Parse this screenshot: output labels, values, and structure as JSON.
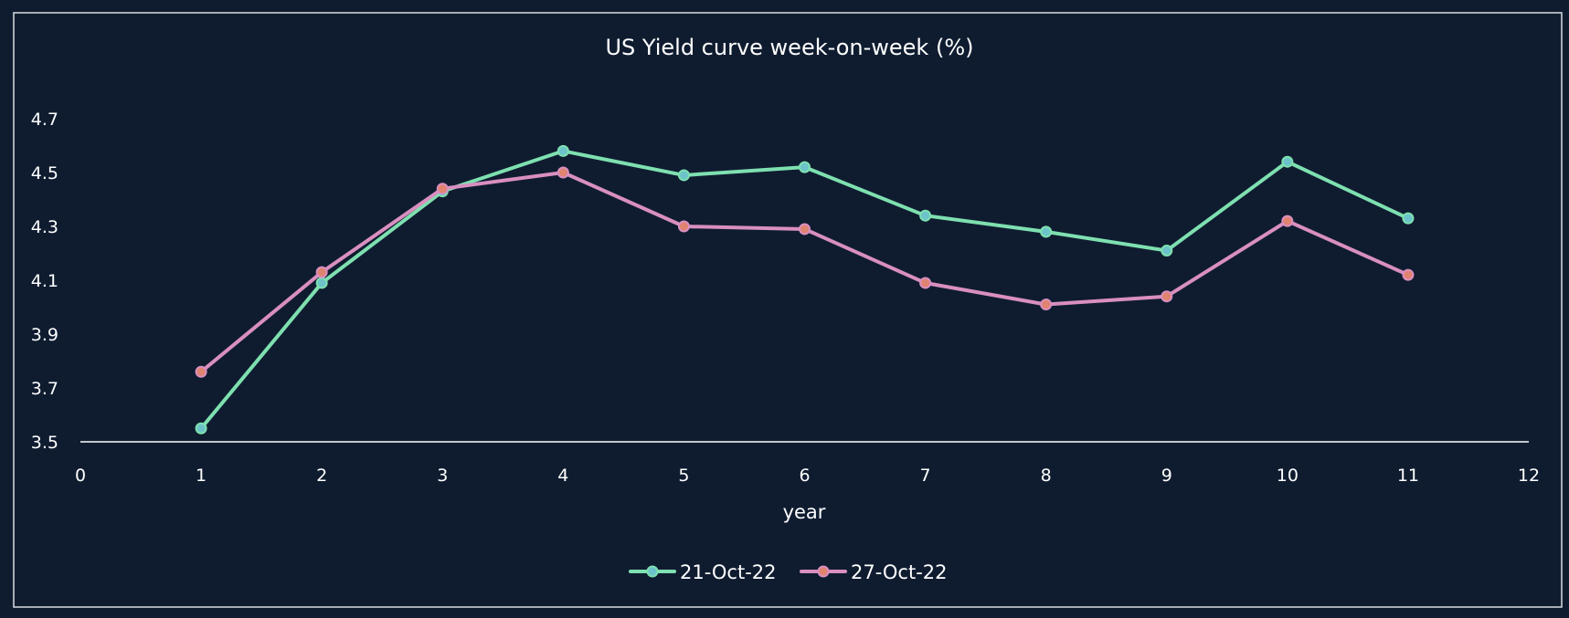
{
  "chart_data": {
    "type": "line",
    "title": "US Yield curve week-on-week (%)",
    "xlabel": "year",
    "ylabel": "",
    "xlim": [
      0,
      12
    ],
    "ylim": [
      3.5,
      4.7
    ],
    "x_ticks": [
      "0",
      "1",
      "2",
      "3",
      "4",
      "5",
      "6",
      "7",
      "8",
      "9",
      "10",
      "11",
      "12"
    ],
    "y_ticks": [
      "3.5",
      "3.7",
      "3.9",
      "4.1",
      "4.3",
      "4.5",
      "4.7"
    ],
    "grid": false,
    "legend_position": "bottom",
    "x": [
      1,
      2,
      3,
      4,
      5,
      6,
      7,
      8,
      9,
      10,
      11
    ],
    "series": [
      {
        "name": "21-Oct-22",
        "color": "#7ee0b0",
        "marker_fill": "#6cc3c9",
        "values": [
          3.55,
          4.09,
          4.43,
          4.58,
          4.49,
          4.52,
          4.34,
          4.28,
          4.21,
          4.54,
          4.33
        ]
      },
      {
        "name": "27-Oct-22",
        "color": "#d98fc0",
        "marker_fill": "#e0836f",
        "values": [
          3.76,
          4.13,
          4.44,
          4.5,
          4.3,
          4.29,
          4.09,
          4.01,
          4.04,
          4.32,
          4.12
        ]
      }
    ]
  }
}
